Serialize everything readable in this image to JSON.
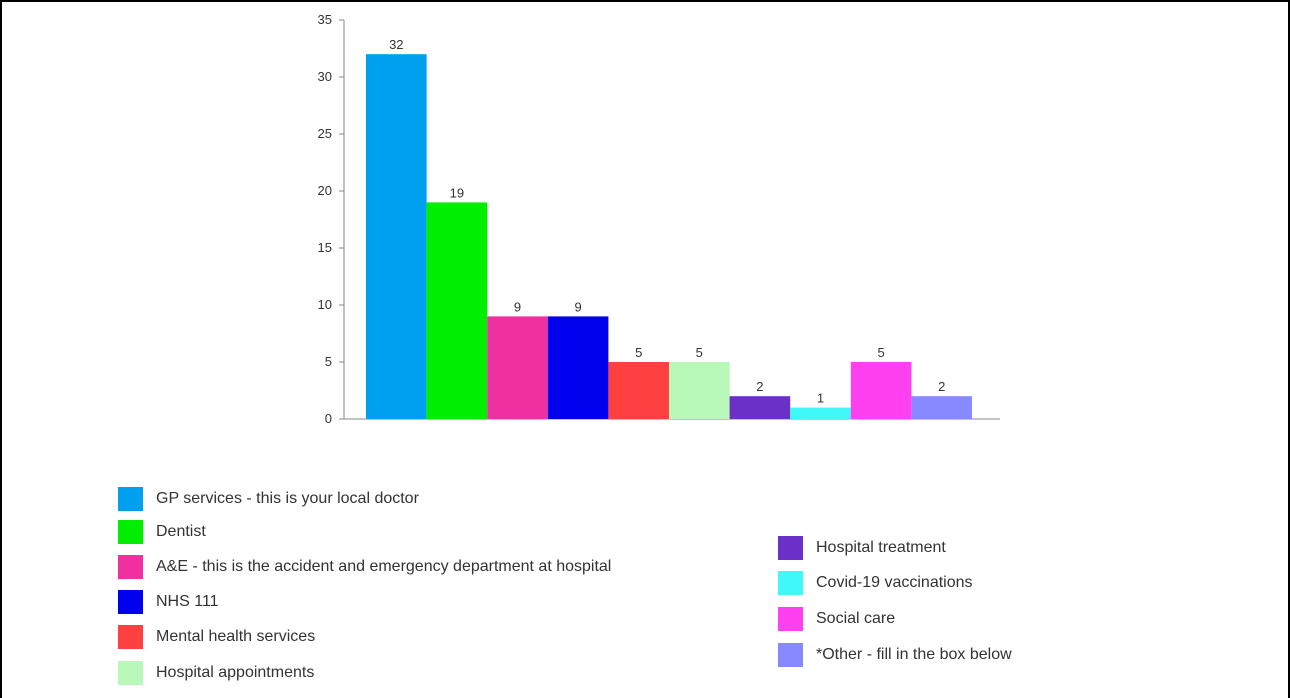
{
  "chart_data": {
    "type": "bar",
    "categories": [
      "GP services - this is your local doctor",
      "Dentist",
      "A&E - this is the accident and emergency department at hospital",
      "NHS 111",
      "Mental health services",
      "Hospital appointments",
      "Hospital treatment",
      "Covid-19 vaccinations",
      "Social care",
      "*Other - fill in the box below"
    ],
    "values": [
      32,
      19,
      9,
      9,
      5,
      5,
      2,
      1,
      5,
      2
    ],
    "colors": [
      "#00a0f0",
      "#00ee00",
      "#f030a0",
      "#0000ee",
      "#ff4040",
      "#b8f8b8",
      "#6a30c8",
      "#40f8f8",
      "#ff40f0",
      "#8888ff"
    ],
    "ylim": [
      0,
      35
    ],
    "yticks": [
      0,
      5,
      10,
      15,
      20,
      25,
      30,
      35
    ],
    "data_labels": true,
    "legend_position": "bottom",
    "grid": false
  }
}
